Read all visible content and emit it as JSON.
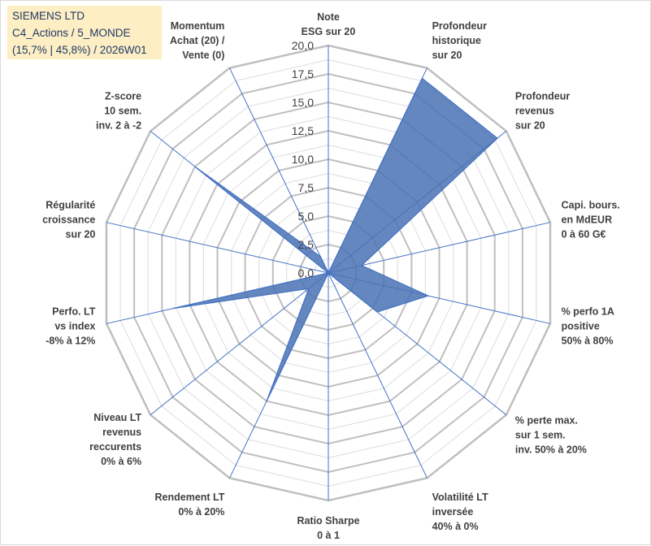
{
  "info": {
    "line1": "SIEMENS LTD",
    "line2": "C4_Actions / 5_MONDE",
    "line3": "(15,7% | 45,8%) / 2026W01"
  },
  "chart_data": {
    "type": "radar",
    "title": "SIEMENS LTD",
    "rmin": 0,
    "rmax": 20,
    "tick_step": 2.5,
    "minor_rings_per_tick": 2,
    "tick_labels": [
      "0,0",
      "2,5",
      "5,0",
      "7,5",
      "10,0",
      "12,5",
      "15,0",
      "17,5",
      "20,0"
    ],
    "axes": [
      {
        "lines": [
          "Note",
          "ESG sur 20"
        ]
      },
      {
        "lines": [
          "Profondeur",
          "historique",
          "sur 20"
        ]
      },
      {
        "lines": [
          "Profondeur",
          "revenus",
          "sur 20"
        ]
      },
      {
        "lines": [
          "Capi. bours.",
          "en MdEUR",
          "0 à 60 G€"
        ]
      },
      {
        "lines": [
          "% perfo 1A",
          "positive",
          "50% à 80%"
        ]
      },
      {
        "lines": [
          "% perte max.",
          "sur 1 sem.",
          "inv. 50% à 20%"
        ]
      },
      {
        "lines": [
          "Volatilité LT",
          "inversée",
          "40% à 0%"
        ]
      },
      {
        "lines": [
          "Ratio Sharpe",
          "0 à 1"
        ]
      },
      {
        "lines": [
          "Rendement LT",
          "0% à 20%"
        ]
      },
      {
        "lines": [
          "Niveau LT",
          "revenus",
          "reccurents",
          "0% à 6%"
        ]
      },
      {
        "lines": [
          "Perfo. LT",
          "vs index",
          "-8% à 12%"
        ]
      },
      {
        "lines": [
          "Régularité",
          "croissance",
          "sur 20"
        ]
      },
      {
        "lines": [
          "Z-score",
          "10 sem.",
          "inv. 2 à -2"
        ]
      },
      {
        "lines": [
          "Momentum",
          "Achat (20) /",
          "Vente (0)"
        ]
      }
    ],
    "series": [
      {
        "name": "SIEMENS LTD",
        "values": [
          0,
          19,
          19,
          3,
          9,
          5.5,
          0,
          0,
          12.5,
          2.2,
          14,
          0,
          15,
          1.6
        ]
      }
    ],
    "colors": {
      "fill": "#4a72b4",
      "stroke": "#4472c4",
      "grid": "#bfbfbf",
      "spoke": "#4472c4"
    }
  }
}
